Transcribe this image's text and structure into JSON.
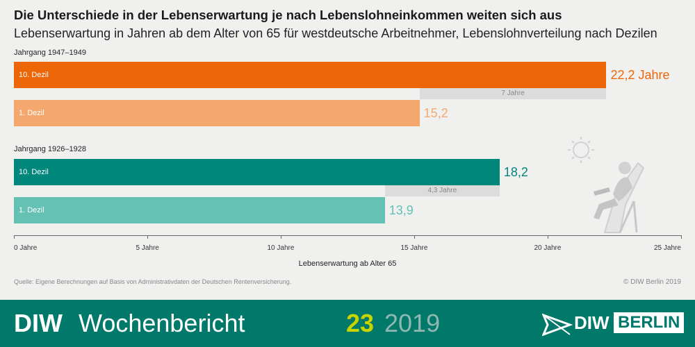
{
  "title": "Die Unterschiede in der Lebenserwartung je nach Lebenslohneinkommen weiten sich aus",
  "subtitle": "Lebenserwartung in Jahren ab dem Alter von 65 für westdeutsche Arbeitnehmer, Lebenslohnverteilung nach Dezilen",
  "chart_data": {
    "type": "bar",
    "orientation": "horizontal",
    "title": "Die Unterschiede in der Lebenserwartung je nach Lebenslohneinkommen weiten sich aus",
    "subtitle": "Lebenserwartung in Jahren ab dem Alter von 65 für westdeutsche Arbeitnehmer, Lebenslohnverteilung nach Dezilen",
    "xlabel": "Lebenserwartung ab Alter 65",
    "xlim": [
      0,
      25
    ],
    "xticks": [
      0,
      5,
      10,
      15,
      20,
      25
    ],
    "xtick_labels": [
      "0 Jahre",
      "5 Jahre",
      "10 Jahre",
      "15 Jahre",
      "20 Jahre",
      "25 Jahre"
    ],
    "groups": [
      {
        "name": "Jahrgang 1947–1949",
        "bars": [
          {
            "label": "10. Dezil",
            "value": 22.2,
            "value_label": "22,2 Jahre",
            "color": "#ec6608"
          },
          {
            "label": "1. Dezil",
            "value": 15.2,
            "value_label": "15,2",
            "color": "#f5a86e"
          }
        ],
        "difference": {
          "value": 7,
          "label": "7 Jahre"
        }
      },
      {
        "name": "Jahrgang 1926–1928",
        "bars": [
          {
            "label": "10. Dezil",
            "value": 18.2,
            "value_label": "18,2",
            "color": "#00877b"
          },
          {
            "label": "1. Dezil",
            "value": 13.9,
            "value_label": "13,9",
            "color": "#65c1b4"
          }
        ],
        "difference": {
          "value": 4.3,
          "label": "4,3 Jahre"
        }
      }
    ]
  },
  "source": "Quelle: Eigene Berechnungen auf Basis von Administrativdaten der Deutschen Rentenversicherung.",
  "copyright": "© DIW Berlin 2019",
  "footer": {
    "brand": "DIW",
    "publication": "Wochenbericht",
    "issue": "23",
    "year": "2019",
    "logo_text": "DIW",
    "logo_city": "BERLIN",
    "background_color": "#00796b"
  }
}
